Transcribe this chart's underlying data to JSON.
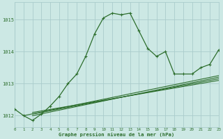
{
  "background_color": "#cce8e4",
  "grid_color": "#aacccc",
  "line_color": "#2d6e2d",
  "title": "Graphe pression niveau de la mer (hPa)",
  "xlim": [
    0,
    23
  ],
  "ylim": [
    1011.65,
    1015.55
  ],
  "yticks": [
    1012,
    1013,
    1014,
    1015
  ],
  "xticks": [
    0,
    1,
    2,
    3,
    4,
    5,
    6,
    7,
    8,
    9,
    10,
    11,
    12,
    13,
    14,
    15,
    16,
    17,
    18,
    19,
    20,
    21,
    22,
    23
  ],
  "main_line_x": [
    0,
    1,
    2,
    3,
    4,
    5,
    6,
    7,
    8,
    9,
    10,
    11,
    12,
    13,
    14,
    15,
    16,
    17,
    18,
    19,
    20,
    21,
    22,
    23
  ],
  "main_line_y": [
    1012.2,
    1012.0,
    1011.85,
    1012.05,
    1012.3,
    1012.6,
    1013.0,
    1013.3,
    1013.85,
    1014.55,
    1015.05,
    1015.2,
    1015.15,
    1015.2,
    1014.65,
    1014.1,
    1013.85,
    1014.0,
    1013.3,
    1013.3,
    1013.3,
    1013.5,
    1013.6,
    1014.05
  ],
  "linear_lines": [
    {
      "x": [
        1,
        23
      ],
      "y": [
        1012.0,
        1013.25
      ]
    },
    {
      "x": [
        2,
        23
      ],
      "y": [
        1012.0,
        1013.2
      ]
    },
    {
      "x": [
        2,
        23
      ],
      "y": [
        1012.05,
        1013.15
      ]
    },
    {
      "x": [
        2,
        23
      ],
      "y": [
        1012.1,
        1013.1
      ]
    }
  ]
}
